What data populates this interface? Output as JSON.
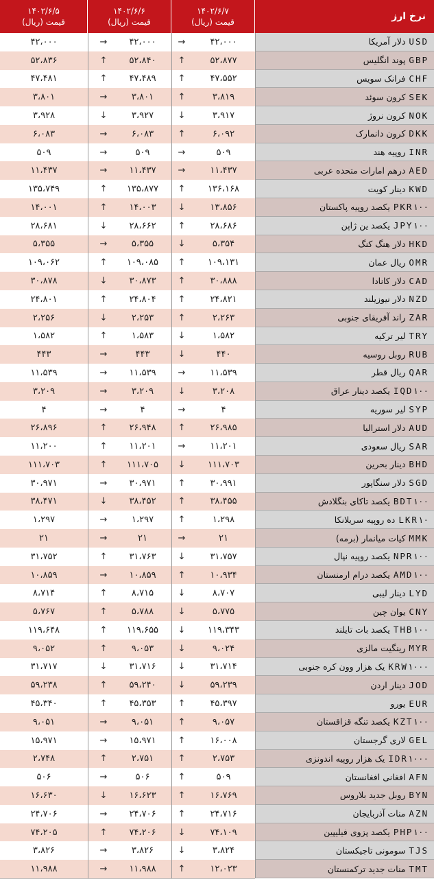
{
  "header": {
    "title": "نرخ ارز",
    "columns": [
      {
        "date": "۱۴۰۲/۶/۷",
        "unit": "قیمت (ریال)"
      },
      {
        "date": "۱۴۰۲/۶/۶",
        "unit": "قیمت (ریال)"
      },
      {
        "date": "۱۴۰۲/۶/۵",
        "unit": "قیمت (ریال)"
      }
    ]
  },
  "rows": [
    [
      "USD",
      "دلار آمریکا",
      "→",
      "۴۲،۰۰۰",
      "→",
      "۴۲،۰۰۰",
      "۴۲،۰۰۰"
    ],
    [
      "GBP",
      "پوند انگلیس",
      "↑",
      "۵۲،۸۷۷",
      "↑",
      "۵۲،۸۴۰",
      "۵۲،۸۳۶"
    ],
    [
      "CHF",
      "فرانک سویس",
      "↑",
      "۴۷،۵۵۲",
      "↑",
      "۴۷،۴۸۹",
      "۴۷،۴۸۱"
    ],
    [
      "SEK",
      "کرون سوئد",
      "↑",
      "۳،۸۱۹",
      "→",
      "۳،۸۰۱",
      "۳،۸۰۱"
    ],
    [
      "NOK",
      "کرون نروژ",
      "↓",
      "۳،۹۱۷",
      "↓",
      "۳،۹۲۷",
      "۳،۹۲۸"
    ],
    [
      "DKK",
      "کرون دانمارک",
      "↑",
      "۶،۰۹۲",
      "→",
      "۶،۰۸۳",
      "۶،۰۸۳"
    ],
    [
      "INR",
      "روپیه هند",
      "→",
      "۵۰۹",
      "→",
      "۵۰۹",
      "۵۰۹"
    ],
    [
      "AED",
      "درهم امارات متحده عربی",
      "→",
      "۱۱،۴۳۷",
      "→",
      "۱۱،۴۳۷",
      "۱۱،۴۳۷"
    ],
    [
      "KWD",
      "دینار کویت",
      "↑",
      "۱۳۶،۱۶۸",
      "↑",
      "۱۳۵،۸۷۷",
      "۱۳۵،۷۴۹"
    ],
    [
      "PKR۱۰۰",
      "یکصد روپیه پاکستان",
      "↓",
      "۱۳،۸۵۶",
      "↑",
      "۱۴،۰۰۳",
      "۱۴،۰۰۱"
    ],
    [
      "JPY۱۰۰",
      "یکصد ین ژاپن",
      "↑",
      "۲۸،۶۸۶",
      "↓",
      "۲۸،۶۶۲",
      "۲۸،۶۸۱"
    ],
    [
      "HKD",
      "دلار هنگ کنگ",
      "↓",
      "۵،۳۵۴",
      "→",
      "۵،۳۵۵",
      "۵،۳۵۵"
    ],
    [
      "OMR",
      "ریال عمان",
      "↑",
      "۱۰۹،۱۳۱",
      "↑",
      "۱۰۹،۰۸۵",
      "۱۰۹،۰۶۲"
    ],
    [
      "CAD",
      "دلار کانادا",
      "↑",
      "۳۰،۸۸۸",
      "↓",
      "۳۰،۸۷۳",
      "۳۰،۸۷۸"
    ],
    [
      "NZD",
      "دلار نیوزیلند",
      "↑",
      "۲۴،۸۲۱",
      "↑",
      "۲۴،۸۰۴",
      "۲۴،۸۰۱"
    ],
    [
      "ZAR",
      "راند آفریقای جنوبی",
      "↑",
      "۲،۲۶۳",
      "↓",
      "۲،۲۵۳",
      "۲،۲۵۶"
    ],
    [
      "TRY",
      "لیر ترکیه",
      "↓",
      "۱،۵۸۲",
      "↑",
      "۱،۵۸۳",
      "۱،۵۸۲"
    ],
    [
      "RUB",
      "روبل روسیه",
      "↓",
      "۴۴۰",
      "→",
      "۴۴۳",
      "۴۴۳"
    ],
    [
      "QAR",
      "ریال قطر",
      "→",
      "۱۱،۵۳۹",
      "→",
      "۱۱،۵۳۹",
      "۱۱،۵۳۹"
    ],
    [
      "IQD۱۰۰",
      "یکصد دینار عراق",
      "↓",
      "۳،۲۰۸",
      "→",
      "۳،۲۰۹",
      "۳،۲۰۹"
    ],
    [
      "SYP",
      "لیر سوریه",
      "→",
      "۴",
      "→",
      "۴",
      "۴"
    ],
    [
      "AUD",
      "دلار استرالیا",
      "↑",
      "۲۶،۹۸۵",
      "↑",
      "۲۶،۹۴۸",
      "۲۶،۸۹۶"
    ],
    [
      "SAR",
      "ریال سعودی",
      "→",
      "۱۱،۲۰۱",
      "↑",
      "۱۱،۲۰۱",
      "۱۱،۲۰۰"
    ],
    [
      "BHD",
      "دینار بحرین",
      "↓",
      "۱۱۱،۷۰۳",
      "↑",
      "۱۱۱،۷۰۵",
      "۱۱۱،۷۰۳"
    ],
    [
      "SGD",
      "دلار سنگاپور",
      "↑",
      "۳۰،۹۹۱",
      "→",
      "۳۰،۹۷۱",
      "۳۰،۹۷۱"
    ],
    [
      "BDT۱۰۰",
      "یکصد تاکای بنگلادش",
      "↑",
      "۳۸،۴۵۵",
      "↓",
      "۳۸،۴۵۲",
      "۳۸،۴۷۱"
    ],
    [
      "LKR۱۰",
      "ده روپیه سریلانکا",
      "↑",
      "۱،۲۹۸",
      "→",
      "۱،۲۹۷",
      "۱،۲۹۷"
    ],
    [
      "MMK",
      "کیات میانمار (برمه)",
      "→",
      "۲۱",
      "→",
      "۲۱",
      "۲۱"
    ],
    [
      "NPR۱۰۰",
      "یکصد روپیه نپال",
      "↓",
      "۳۱،۷۵۷",
      "↑",
      "۳۱،۷۶۳",
      "۳۱،۷۵۲"
    ],
    [
      "AMD۱۰۰",
      "یکصد درام ارمنستان",
      "↑",
      "۱۰،۹۳۴",
      "→",
      "۱۰،۸۵۹",
      "۱۰،۸۵۹"
    ],
    [
      "LYD",
      "دینار لیبی",
      "↓",
      "۸،۷۰۷",
      "↑",
      "۸،۷۱۵",
      "۸،۷۱۴"
    ],
    [
      "CNY",
      "یوان چین",
      "↓",
      "۵،۷۷۵",
      "↑",
      "۵،۷۸۸",
      "۵،۷۶۷"
    ],
    [
      "THB۱۰۰",
      "یکصد بات تایلند",
      "↓",
      "۱۱۹،۳۴۳",
      "↑",
      "۱۱۹،۶۵۵",
      "۱۱۹،۶۴۸"
    ],
    [
      "MYR",
      "رینگیت مالزی",
      "↓",
      "۹،۰۲۴",
      "↑",
      "۹،۰۵۳",
      "۹،۰۵۲"
    ],
    [
      "KRW۱۰۰۰",
      "یک هزار وون کره جنوبی",
      "↓",
      "۳۱،۷۱۴",
      "↓",
      "۳۱،۷۱۶",
      "۳۱،۷۱۷"
    ],
    [
      "JOD",
      "دینار اردن",
      "↓",
      "۵۹،۲۳۹",
      "↑",
      "۵۹،۲۴۰",
      "۵۹،۲۳۸"
    ],
    [
      "EUR",
      "یورو",
      "↑",
      "۴۵،۳۹۷",
      "↑",
      "۴۵،۳۵۳",
      "۴۵،۳۴۰"
    ],
    [
      "KZT۱۰۰",
      "یکصد تنگه قزاقستان",
      "↑",
      "۹،۰۵۷",
      "→",
      "۹،۰۵۱",
      "۹،۰۵۱"
    ],
    [
      "GEL",
      "لاری گرجستان",
      "↑",
      "۱۶،۰۰۸",
      "→",
      "۱۵،۹۷۱",
      "۱۵،۹۷۱"
    ],
    [
      "IDR۱۰۰۰",
      "یک هزار روپیه اندونزی",
      "↑",
      "۲،۷۵۳",
      "↑",
      "۲،۷۵۱",
      "۲،۷۴۸"
    ],
    [
      "AFN",
      "افغانی افغانستان",
      "↑",
      "۵۰۹",
      "→",
      "۵۰۶",
      "۵۰۶"
    ],
    [
      "BYN",
      "روبل جدید بلاروس",
      "↑",
      "۱۶،۷۶۹",
      "↓",
      "۱۶،۶۲۳",
      "۱۶،۶۳۰"
    ],
    [
      "AZN",
      "منات آذربایجان",
      "↑",
      "۲۴،۷۱۶",
      "→",
      "۲۴،۷۰۶",
      "۲۴،۷۰۶"
    ],
    [
      "PHP۱۰۰",
      "یکصد پزوی فیلیپین",
      "↓",
      "۷۴،۱۰۹",
      "↑",
      "۷۴،۲۰۶",
      "۷۴،۲۰۵"
    ],
    [
      "TJS",
      "سومونی تاجیکستان",
      "↓",
      "۳،۸۲۴",
      "→",
      "۳،۸۲۶",
      "۳،۸۲۶"
    ],
    [
      "TMT",
      "منات جدید ترکمنستان",
      "↑",
      "۱۲،۰۲۳",
      "→",
      "۱۱،۹۸۸",
      "۱۱،۹۸۸"
    ]
  ]
}
